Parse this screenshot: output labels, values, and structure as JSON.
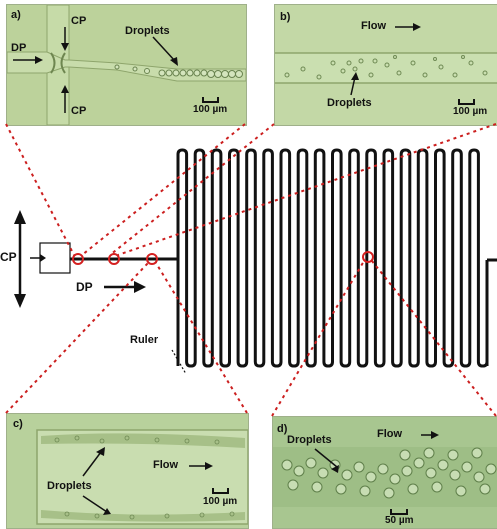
{
  "panel_a": {
    "letter": "a)",
    "cp_top": "CP",
    "cp_bottom": "CP",
    "dp": "DP",
    "droplets": "Droplets",
    "scale": "100 µm"
  },
  "panel_b": {
    "letter": "b)",
    "flow": "Flow",
    "droplets": "Droplets",
    "scale": "100 µm"
  },
  "panel_c": {
    "letter": "c)",
    "droplets": "Droplets",
    "flow": "Flow",
    "scale": "100 µm"
  },
  "panel_d": {
    "letter": "d)",
    "droplets": "Droplets",
    "flow": "Flow",
    "scale": "50 µm"
  },
  "center": {
    "cp": "CP",
    "dp": "DP",
    "ruler": "Ruler"
  },
  "colors": {
    "panel_green": "#b9cf98",
    "panel_green_dark": "#9db57a",
    "channel": "#111111",
    "marker": "#d42020",
    "dotted": "#cc1f1f"
  }
}
